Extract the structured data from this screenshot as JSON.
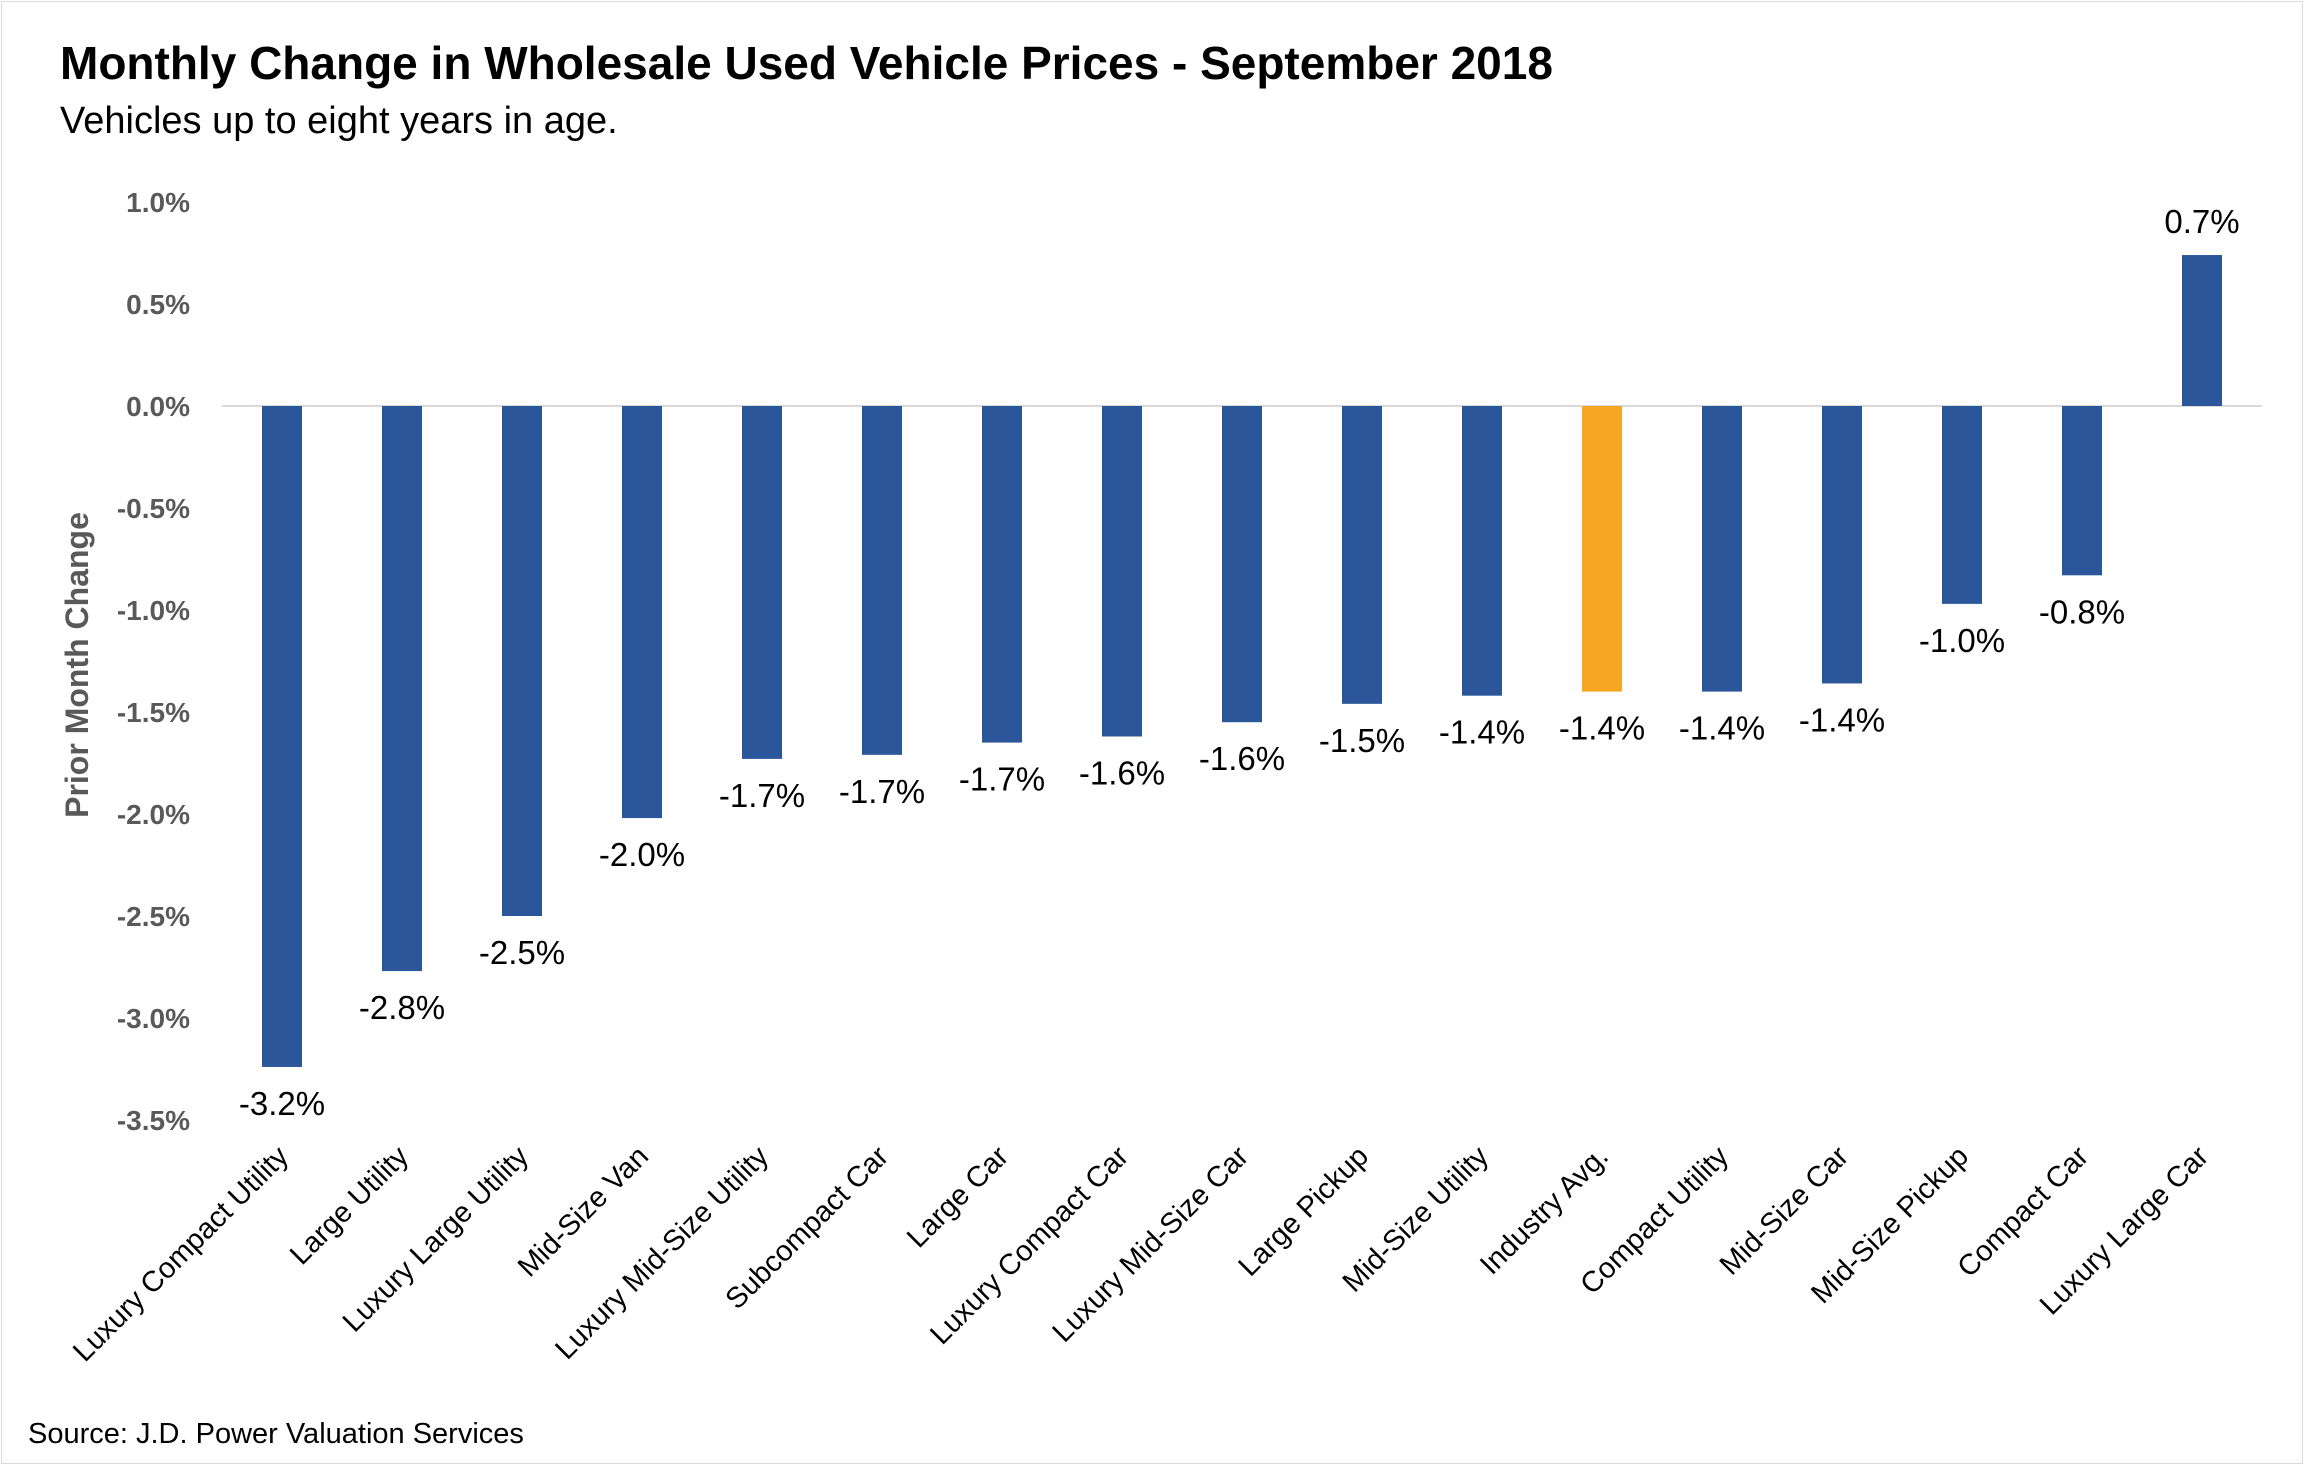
{
  "header": {
    "title": "Monthly Change in Wholesale Used Vehicle Prices - September 2018",
    "subtitle": "Vehicles up to eight years in age."
  },
  "footer": {
    "source": "Source: J.D. Power Valuation Services"
  },
  "colors": {
    "bar": "#2b579a",
    "highlight": "#f5a623",
    "axis": "#d9d9d9",
    "text": "#595959"
  },
  "chart_data": {
    "type": "bar",
    "title": "Monthly Change in Wholesale Used Vehicle Prices - September 2018",
    "subtitle": "Vehicles up to eight years in age.",
    "xlabel": "",
    "ylabel": "Prior Month Change",
    "ylim": [
      -3.5,
      1.0
    ],
    "yticks": [
      "1.0%",
      "0.5%",
      "0.0%",
      "-0.5%",
      "-1.0%",
      "-1.5%",
      "-2.0%",
      "-2.5%",
      "-3.0%",
      "-3.5%"
    ],
    "ytick_values": [
      1.0,
      0.5,
      0.0,
      -0.5,
      -1.0,
      -1.5,
      -2.0,
      -2.5,
      -3.0,
      -3.5
    ],
    "grid": false,
    "legend": "none",
    "categories": [
      "Luxury Compact Utility",
      "Large Utility",
      "Luxury Large Utility",
      "Mid-Size Van",
      "Luxury Mid-Size Utility",
      "Subcompact Car",
      "Large Car",
      "Luxury Compact Car",
      "Luxury Mid-Size Car",
      "Large Pickup",
      "Mid-Size Utility",
      "Industry Avg.",
      "Compact Utility",
      "Mid-Size Car",
      "Mid-Size Pickup",
      "Compact Car",
      "Luxury Large Car"
    ],
    "values": [
      -3.24,
      -2.77,
      -2.5,
      -2.02,
      -1.73,
      -1.71,
      -1.65,
      -1.62,
      -1.55,
      -1.46,
      -1.42,
      -1.4,
      -1.4,
      -1.36,
      -0.97,
      -0.83,
      0.74
    ],
    "data_labels": [
      "-3.2%",
      "-2.8%",
      "-2.5%",
      "-2.0%",
      "-1.7%",
      "-1.7%",
      "-1.7%",
      "-1.6%",
      "-1.6%",
      "-1.5%",
      "-1.4%",
      "-1.4%",
      "-1.4%",
      "-1.4%",
      "-1.0%",
      "-0.8%",
      "0.7%"
    ],
    "highlight_category": "Industry Avg."
  }
}
